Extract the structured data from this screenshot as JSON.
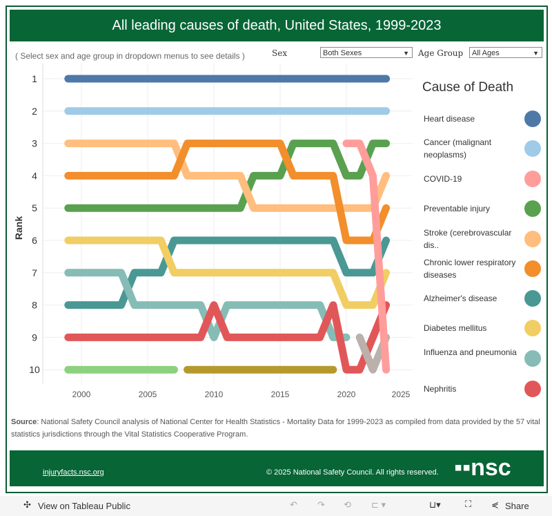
{
  "title": "All leading causes of death, United States, 1999-2023",
  "hint": "( Select sex and age group in dropdown menus to see details )",
  "filters": {
    "sex_label": "Sex",
    "sex_value": "Both Sexes",
    "age_label": "Age Group",
    "age_value": "All Ages"
  },
  "chart_data": {
    "type": "line",
    "title": "All leading causes of death, United States, 1999-2023",
    "xlabel": "",
    "ylabel": "Rank",
    "xlim": [
      1998,
      2025
    ],
    "ylim": [
      10,
      1
    ],
    "y_reversed": true,
    "xticks": [
      "2000",
      "2005",
      "2010",
      "2015",
      "2020",
      "2025"
    ],
    "yticks": [
      "1",
      "2",
      "3",
      "4",
      "5",
      "6",
      "7",
      "8",
      "9",
      "10"
    ],
    "legend_title": "Cause of Death",
    "legend_position": "right",
    "series": [
      {
        "name": "Heart disease",
        "color": "#4e79a7",
        "points": [
          [
            1999,
            1
          ],
          [
            2023,
            1
          ]
        ]
      },
      {
        "name": "Cancer (malignant neoplasms)",
        "color": "#a0cbe8",
        "points": [
          [
            1999,
            2
          ],
          [
            2023,
            2
          ]
        ]
      },
      {
        "name": "Preventable injury",
        "color": "#59a14f",
        "points": [
          [
            1999,
            5
          ],
          [
            2012,
            5
          ],
          [
            2013,
            4
          ],
          [
            2015,
            4
          ],
          [
            2016,
            3
          ],
          [
            2019,
            3
          ],
          [
            2020,
            4
          ],
          [
            2021,
            4
          ],
          [
            2022,
            3
          ],
          [
            2023,
            3
          ]
        ]
      },
      {
        "name": "Stroke (cerebrovascular dis..",
        "color": "#ffbe7d",
        "points": [
          [
            1999,
            3
          ],
          [
            2007,
            3
          ],
          [
            2008,
            4
          ],
          [
            2012,
            4
          ],
          [
            2013,
            5
          ],
          [
            2022,
            5
          ],
          [
            2023,
            4
          ]
        ]
      },
      {
        "name": "Chronic lower respiratory diseases",
        "color": "#f28e2b",
        "points": [
          [
            1999,
            4
          ],
          [
            2007,
            4
          ],
          [
            2008,
            3
          ],
          [
            2015,
            3
          ],
          [
            2016,
            4
          ],
          [
            2019,
            4
          ],
          [
            2020,
            6
          ],
          [
            2022,
            6
          ],
          [
            2023,
            5
          ]
        ]
      },
      {
        "name": "Alzheimer's disease",
        "color": "#499894",
        "points": [
          [
            1999,
            8
          ],
          [
            2003,
            8
          ],
          [
            2004,
            7
          ],
          [
            2006,
            7
          ],
          [
            2007,
            6
          ],
          [
            2019,
            6
          ],
          [
            2020,
            7
          ],
          [
            2022,
            7
          ],
          [
            2023,
            6
          ]
        ]
      },
      {
        "name": "Diabetes mellitus",
        "color": "#f1ce63",
        "points": [
          [
            1999,
            6
          ],
          [
            2006,
            6
          ],
          [
            2007,
            7
          ],
          [
            2019,
            7
          ],
          [
            2020,
            8
          ],
          [
            2022,
            8
          ],
          [
            2023,
            7
          ]
        ]
      },
      {
        "name": "Influenza and pneumonia",
        "color": "#86bcb6",
        "points": [
          [
            1999,
            7
          ],
          [
            2003,
            7
          ],
          [
            2004,
            8
          ],
          [
            2009,
            8
          ],
          [
            2010,
            9
          ],
          [
            2011,
            8
          ],
          [
            2018,
            8
          ],
          [
            2019,
            9
          ],
          [
            2020,
            9
          ]
        ]
      },
      {
        "name": "Nephritis",
        "color": "#e15759",
        "points": [
          [
            1999,
            9
          ],
          [
            2009,
            9
          ],
          [
            2010,
            8
          ],
          [
            2011,
            9
          ],
          [
            2018,
            9
          ],
          [
            2019,
            8
          ],
          [
            2020,
            10
          ],
          [
            2021,
            10
          ],
          [
            2022,
            9
          ],
          [
            2023,
            8
          ]
        ]
      },
      {
        "color": "#8cd17d",
        "points": [
          [
            1999,
            10
          ],
          [
            2007,
            10
          ]
        ]
      },
      {
        "color": "#b6992d",
        "points": [
          [
            2008,
            10
          ],
          [
            2019,
            10
          ]
        ]
      },
      {
        "color": "#bab0ac",
        "points": [
          [
            2021,
            9
          ],
          [
            2022,
            10
          ],
          [
            2023,
            9
          ]
        ]
      },
      {
        "name": "COVID-19",
        "color": "#ff9d9a",
        "points": [
          [
            2020,
            3
          ],
          [
            2021,
            3
          ],
          [
            2022,
            4
          ],
          [
            2023,
            10
          ]
        ]
      }
    ],
    "legend": [
      "Heart disease",
      "Cancer (malignant neoplasms)",
      "COVID-19",
      "Preventable injury",
      "Stroke (cerebrovascular dis..",
      "Chronic lower respiratory diseases",
      "Alzheimer's disease",
      "Diabetes mellitus",
      "Influenza and pneumonia",
      "Nephritis"
    ]
  },
  "legend_items": [
    {
      "label": "Heart disease",
      "color": "#4e79a7"
    },
    {
      "label": "Cancer (malignant neoplasms)",
      "color": "#a0cbe8"
    },
    {
      "label": "COVID-19",
      "color": "#ff9d9a"
    },
    {
      "label": "Preventable injury",
      "color": "#59a14f"
    },
    {
      "label": "Stroke (cerebrovascular dis..",
      "color": "#ffbe7d"
    },
    {
      "label": "Chronic lower respiratory diseases",
      "color": "#f28e2b"
    },
    {
      "label": "Alzheimer's disease",
      "color": "#499894"
    },
    {
      "label": "Diabetes mellitus",
      "color": "#f1ce63"
    },
    {
      "label": "Influenza and pneumonia",
      "color": "#86bcb6"
    },
    {
      "label": "Nephritis",
      "color": "#e15759"
    }
  ],
  "source_label": "Source",
  "source_text": ": National Safety Council analysis of National Center for Health Statistics - Mortality Data for 1999-2023 as compiled from data provided by the 57 vital statistics jurisdictions through the Vital Statistics Cooperative Program.",
  "footer": {
    "link": "injuryfacts.nsc.org",
    "copyright": "© 2025 National Safety Council. All rights reserved.",
    "logo_text": "nsc"
  },
  "toolbar": {
    "view_label": "View on Tableau Public",
    "share_label": "Share"
  }
}
